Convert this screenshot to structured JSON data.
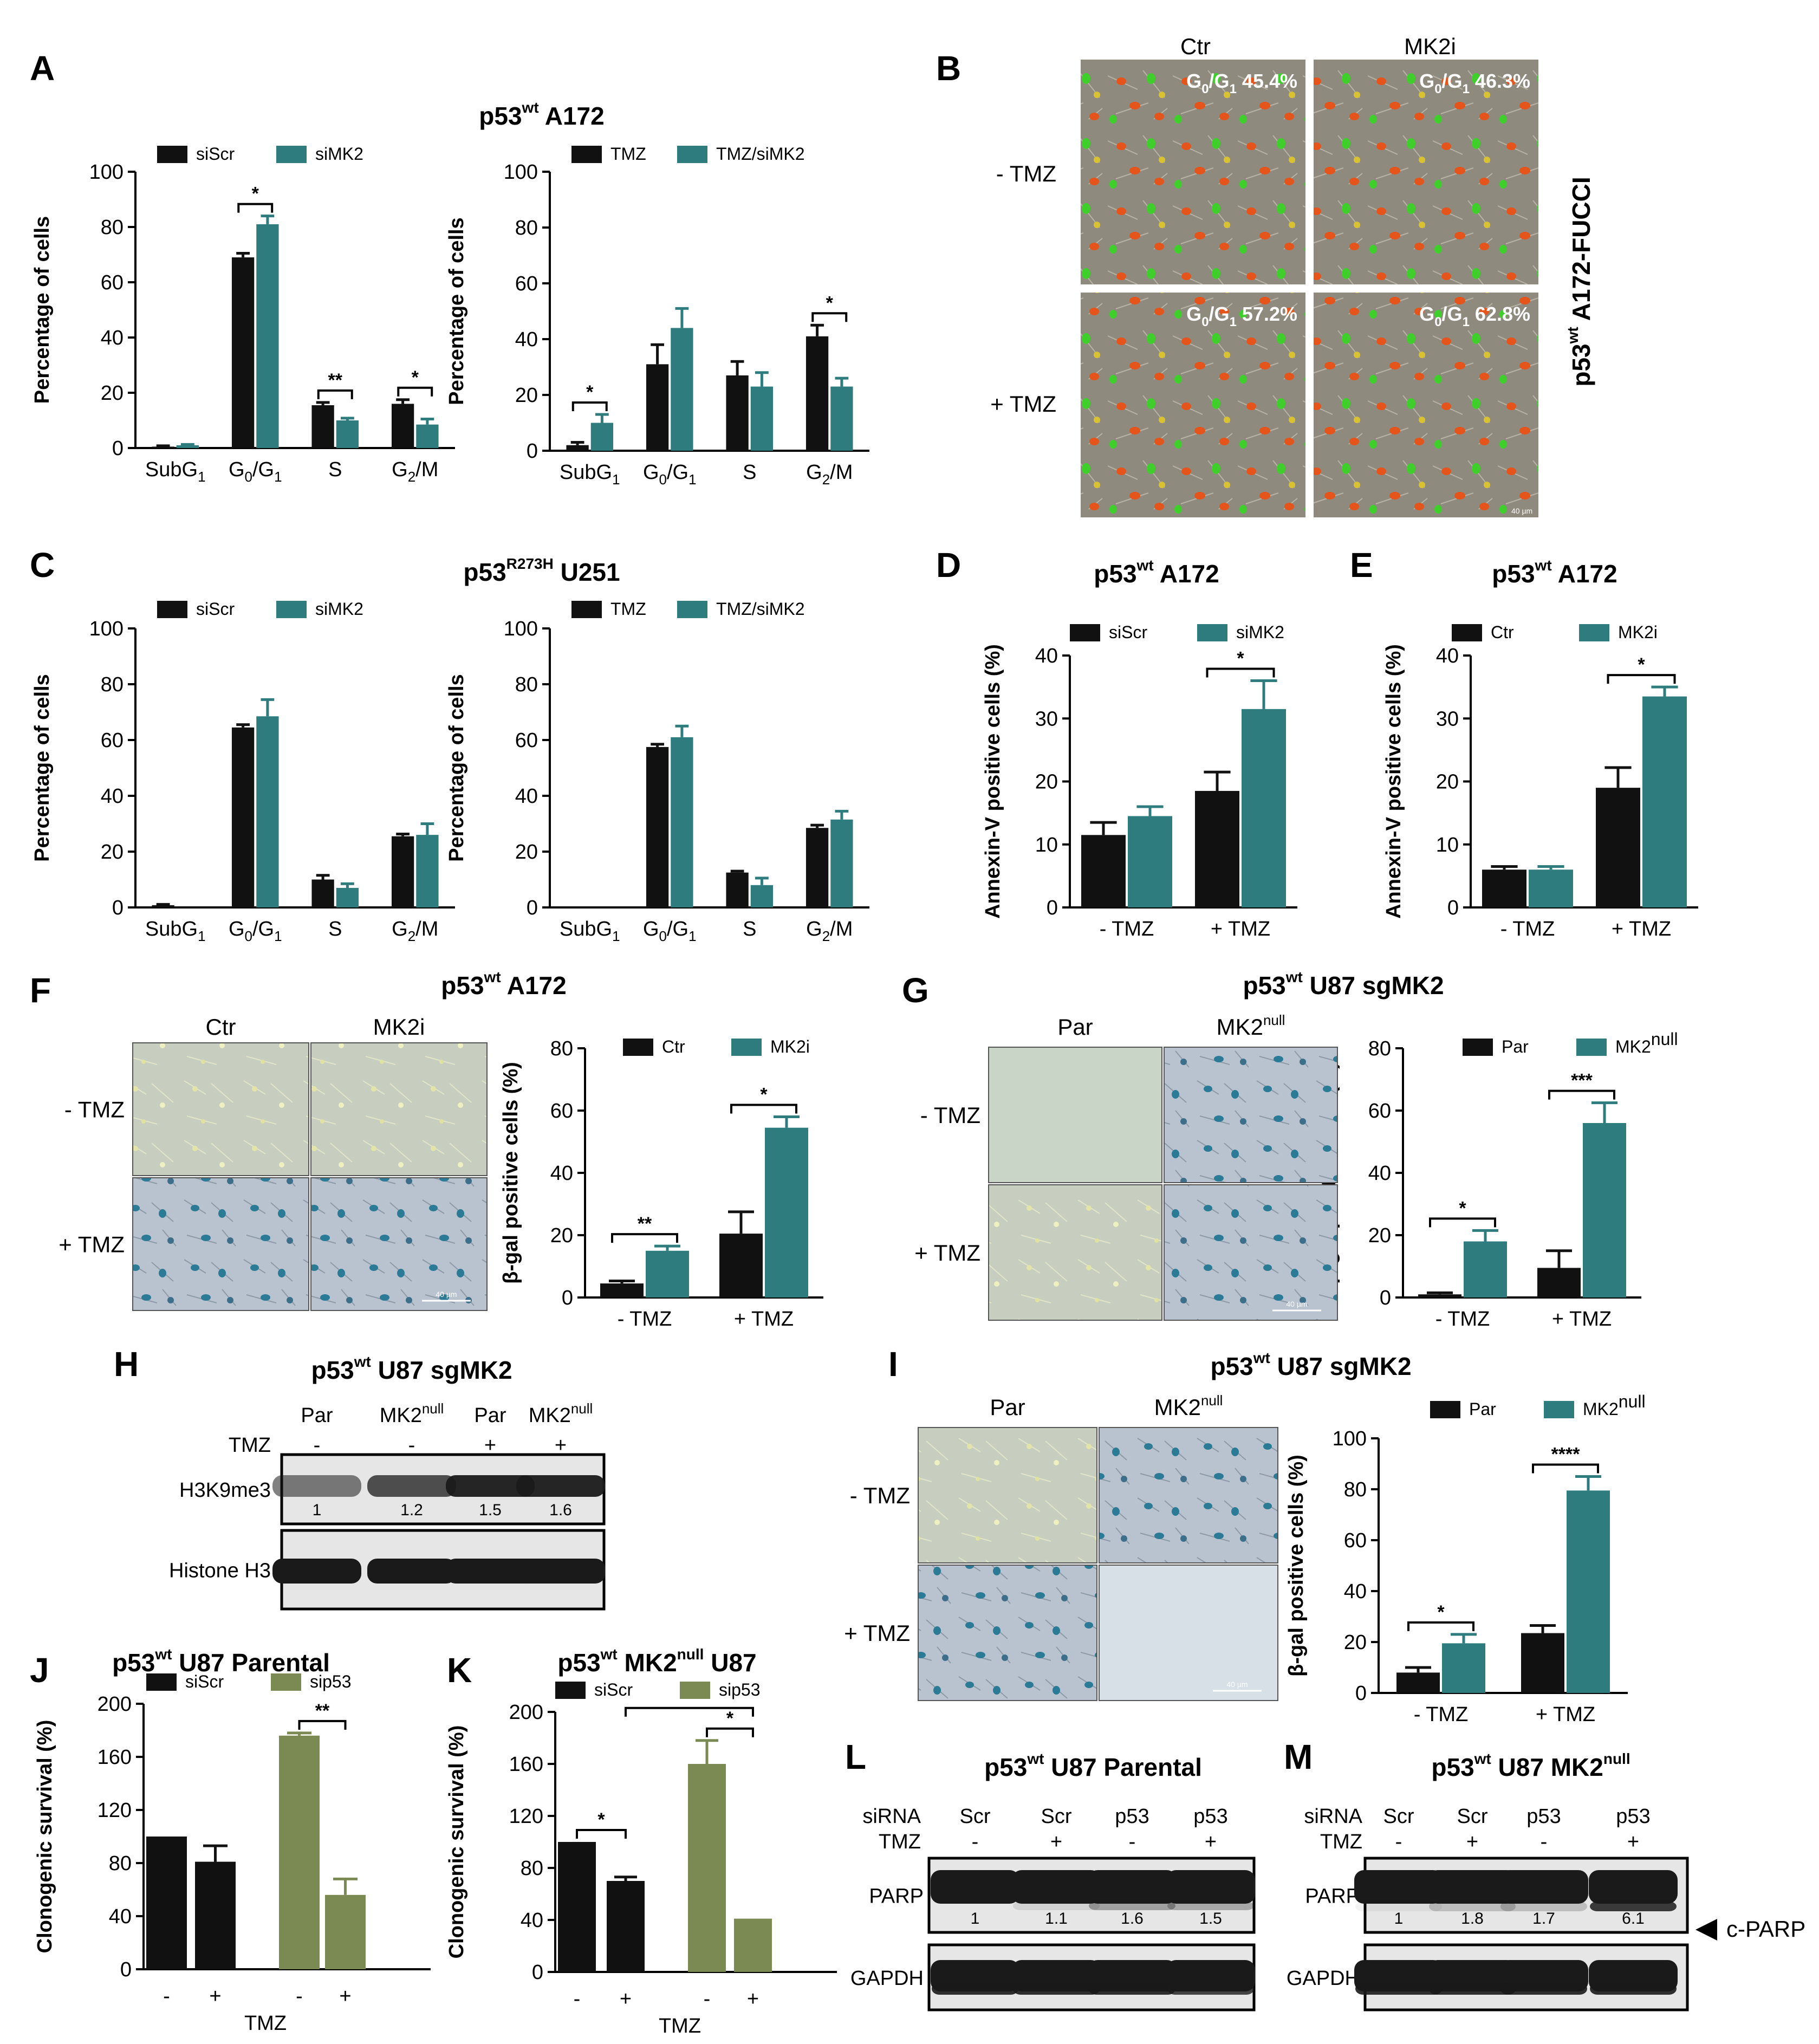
{
  "colors": {
    "black": "#111111",
    "teal": "#2e7c7e",
    "olive": "#7b8a52",
    "fucci_bg": "#8e8a7e",
    "fucci_red": "#e4541b",
    "fucci_green": "#3fcf2b",
    "sa_blue": "#2b7a96",
    "blot_bg": "#e6e6e6",
    "band": "#1a1a1a"
  },
  "chart_data": [
    {
      "id": "A-left",
      "panel": "A",
      "type": "bar",
      "title": "p53wt A172",
      "ylabel": "Percentage of cells",
      "ylim": [
        0,
        100
      ],
      "yticks": [
        0,
        20,
        40,
        60,
        80,
        100
      ],
      "categories": [
        "SubG1",
        "G0/G1",
        "S",
        "G2/M"
      ],
      "series": [
        {
          "name": "siScr",
          "color": "black",
          "values": [
            0.5,
            69,
            15.5,
            16
          ],
          "errors": [
            0.3,
            1.5,
            1,
            1.5
          ]
        },
        {
          "name": "siMK2",
          "color": "teal",
          "values": [
            1,
            81,
            10,
            8.5
          ],
          "errors": [
            0.3,
            3,
            0.8,
            2
          ]
        }
      ],
      "significance": [
        {
          "cat": 1,
          "label": "*"
        },
        {
          "cat": 2,
          "label": "**"
        },
        {
          "cat": 3,
          "label": "*"
        }
      ]
    },
    {
      "id": "A-right",
      "panel": "A",
      "type": "bar",
      "ylabel": "Percentage of cells",
      "ylim": [
        0,
        100
      ],
      "yticks": [
        0,
        20,
        40,
        60,
        80,
        100
      ],
      "categories": [
        "SubG1",
        "G0/G1",
        "S",
        "G2/M"
      ],
      "series": [
        {
          "name": "TMZ",
          "color": "black",
          "values": [
            2,
            31,
            27,
            41
          ],
          "errors": [
            1,
            7,
            5,
            4
          ]
        },
        {
          "name": "TMZ/siMK2",
          "color": "teal",
          "values": [
            10,
            44,
            23,
            23
          ],
          "errors": [
            3,
            7,
            5,
            3
          ]
        }
      ],
      "significance": [
        {
          "cat": 0,
          "label": "*"
        },
        {
          "cat": 3,
          "label": "*"
        }
      ]
    },
    {
      "id": "C-left",
      "panel": "C",
      "type": "bar",
      "title": "p53R273H U251",
      "ylabel": "Percentage of cells",
      "ylim": [
        0,
        100
      ],
      "yticks": [
        0,
        20,
        40,
        60,
        80,
        100
      ],
      "categories": [
        "SubG1",
        "G0/G1",
        "S",
        "G2/M"
      ],
      "series": [
        {
          "name": "siScr",
          "color": "black",
          "values": [
            0.8,
            64.5,
            10,
            25.5
          ],
          "errors": [
            0.3,
            1,
            1.5,
            0.8
          ]
        },
        {
          "name": "siMK2",
          "color": "teal",
          "values": [
            0,
            68.5,
            7,
            26
          ],
          "errors": [
            0,
            6,
            1.5,
            4
          ]
        }
      ],
      "significance": []
    },
    {
      "id": "C-right",
      "panel": "C",
      "type": "bar",
      "ylabel": "Percentage of cells",
      "ylim": [
        0,
        100
      ],
      "yticks": [
        0,
        20,
        40,
        60,
        80,
        100
      ],
      "categories": [
        "SubG1",
        "G0/G1",
        "S",
        "G2/M"
      ],
      "series": [
        {
          "name": "TMZ",
          "color": "black",
          "values": [
            0,
            57.5,
            12.5,
            28.5
          ],
          "errors": [
            0,
            1,
            0.5,
            1
          ]
        },
        {
          "name": "TMZ/siMK2",
          "color": "teal",
          "values": [
            0,
            61,
            8,
            31.5
          ],
          "errors": [
            0,
            4,
            2.5,
            3
          ]
        }
      ],
      "significance": []
    },
    {
      "id": "D",
      "panel": "D",
      "type": "bar",
      "title": "p53wt A172",
      "ylabel": "Annexin-V positive cells (%)",
      "ylim": [
        0,
        40
      ],
      "yticks": [
        0,
        10,
        20,
        30,
        40
      ],
      "categories": [
        "- TMZ",
        "+ TMZ"
      ],
      "series": [
        {
          "name": "siScr",
          "color": "black",
          "values": [
            11.5,
            18.5
          ],
          "errors": [
            2,
            3
          ]
        },
        {
          "name": "siMK2",
          "color": "teal",
          "values": [
            14.5,
            31.5
          ],
          "errors": [
            1.5,
            4.5
          ]
        }
      ],
      "significance": [
        {
          "cat": 1,
          "label": "*"
        }
      ]
    },
    {
      "id": "E",
      "panel": "E",
      "type": "bar",
      "title": "p53wt A172",
      "ylabel": "Annexin-V positive cells (%)",
      "ylim": [
        0,
        40
      ],
      "yticks": [
        0,
        10,
        20,
        30,
        40
      ],
      "categories": [
        "- TMZ",
        "+ TMZ"
      ],
      "series": [
        {
          "name": "Ctr",
          "color": "black",
          "values": [
            6,
            19
          ],
          "errors": [
            0.5,
            3.2
          ]
        },
        {
          "name": "MK2i",
          "color": "teal",
          "values": [
            6,
            33.5
          ],
          "errors": [
            0.5,
            1.5
          ]
        }
      ],
      "significance": [
        {
          "cat": 1,
          "label": "*"
        }
      ]
    },
    {
      "id": "F",
      "panel": "F",
      "type": "bar",
      "ylabel": "β-gal positive cells (%)",
      "ylim": [
        0,
        80
      ],
      "yticks": [
        0,
        20,
        40,
        60,
        80
      ],
      "categories": [
        "- TMZ",
        "+ TMZ"
      ],
      "series": [
        {
          "name": "Ctr",
          "color": "black",
          "values": [
            4.5,
            20.5
          ],
          "errors": [
            0.8,
            7
          ]
        },
        {
          "name": "MK2i",
          "color": "teal",
          "values": [
            15,
            54.5
          ],
          "errors": [
            1.5,
            3.5
          ]
        }
      ],
      "significance": [
        {
          "cat": 0,
          "label": "**"
        },
        {
          "cat": 1,
          "label": "*"
        }
      ]
    },
    {
      "id": "G",
      "panel": "G",
      "type": "bar",
      "ylabel": "β-gal positive cells (%)",
      "ylim": [
        0,
        80
      ],
      "yticks": [
        0,
        20,
        40,
        60,
        80
      ],
      "categories": [
        "- TMZ",
        "+ TMZ"
      ],
      "series": [
        {
          "name": "Par",
          "color": "black",
          "values": [
            1,
            9.5
          ],
          "errors": [
            0.5,
            5.5
          ]
        },
        {
          "name": "MK2null",
          "color": "teal",
          "values": [
            18,
            56
          ],
          "errors": [
            3.5,
            6.5
          ]
        }
      ],
      "significance": [
        {
          "cat": 0,
          "label": "*"
        },
        {
          "cat": 1,
          "label": "***"
        }
      ]
    },
    {
      "id": "I",
      "panel": "I",
      "type": "bar",
      "ylabel": "β-gal positive cells (%)",
      "ylim": [
        0,
        100
      ],
      "yticks": [
        0,
        20,
        40,
        60,
        80,
        100
      ],
      "categories": [
        "- TMZ",
        "+ TMZ"
      ],
      "series": [
        {
          "name": "Par",
          "color": "black",
          "values": [
            8,
            23.5
          ],
          "errors": [
            2,
            3
          ]
        },
        {
          "name": "MK2null",
          "color": "teal",
          "values": [
            19.5,
            79.5
          ],
          "errors": [
            3.5,
            5.5
          ]
        }
      ],
      "significance": [
        {
          "cat": 0,
          "label": "*"
        },
        {
          "cat": 1,
          "label": "****"
        }
      ]
    },
    {
      "id": "J",
      "panel": "J",
      "type": "bar",
      "title": "p53wt U87 Parental",
      "ylabel": "Clonogenic survival (%)",
      "xlabel": "TMZ",
      "ylim": [
        0,
        200
      ],
      "yticks": [
        0,
        40,
        80,
        120,
        160,
        200
      ],
      "categories": [
        "-",
        "+",
        "-",
        "+"
      ],
      "values": [
        100,
        81,
        176,
        56
      ],
      "errors": [
        0,
        12,
        2,
        12
      ],
      "bar_series": [
        "siScr",
        "siScr",
        "sip53",
        "sip53"
      ],
      "legend": [
        {
          "name": "siScr",
          "color": "black"
        },
        {
          "name": "sip53",
          "color": "olive"
        }
      ],
      "significance": [
        {
          "from": 2,
          "to": 3,
          "label": "**"
        }
      ]
    },
    {
      "id": "K",
      "panel": "K",
      "type": "bar",
      "title": "p53wt MK2null U87",
      "ylabel": "Clonogenic survival (%)",
      "xlabel": "TMZ",
      "ylim": [
        0,
        200
      ],
      "yticks": [
        0,
        40,
        80,
        120,
        160,
        200
      ],
      "categories": [
        "-",
        "+",
        "-",
        "+"
      ],
      "values": [
        100,
        70,
        160,
        41
      ],
      "errors": [
        0,
        3,
        18,
        0
      ],
      "bar_series": [
        "siScr",
        "siScr",
        "sip53",
        "sip53"
      ],
      "legend": [
        {
          "name": "siScr",
          "color": "black"
        },
        {
          "name": "sip53",
          "color": "olive"
        }
      ],
      "significance": [
        {
          "from": 0,
          "to": 1,
          "label": "*"
        },
        {
          "from": 2,
          "to": 3,
          "label": "*"
        },
        {
          "from": 1,
          "to": 3,
          "label": "*"
        }
      ]
    }
  ],
  "panels": {
    "A": "A",
    "B": "B",
    "C": "C",
    "D": "D",
    "E": "E",
    "F": "F",
    "G": "G",
    "H": "H",
    "I": "I",
    "J": "J",
    "K": "K",
    "L": "L",
    "M": "M"
  },
  "titles": {
    "A": {
      "pre": "p53",
      "sup": "wt",
      "post": " A172"
    },
    "C": {
      "pre": "p53",
      "sup": "R273H",
      "post": " U251"
    },
    "D": {
      "pre": "p53",
      "sup": "wt",
      "post": " A172"
    },
    "E": {
      "pre": "p53",
      "sup": "wt",
      "post": " A172"
    },
    "F": {
      "pre": "p53",
      "sup": "wt",
      "post": " A172"
    },
    "G": {
      "pre": "p53",
      "sup": "wt",
      "post": " U87 sgMK2"
    },
    "H": {
      "pre": "p53",
      "sup": "wt",
      "post": " U87 sgMK2"
    },
    "I": {
      "pre": "p53",
      "sup": "wt",
      "post": " U87 sgMK2"
    },
    "J": {
      "pre": "p53",
      "sup": "wt",
      "post": " U87 Parental"
    },
    "K": {
      "pre": "p53",
      "sup": "wt",
      "post": " MK2",
      "sup2": "null",
      "post2": " U87"
    },
    "L": {
      "pre": "p53",
      "sup": "wt",
      "post": " U87 Parental"
    },
    "M": {
      "pre": "p53",
      "sup": "wt",
      "post": " U87 MK2",
      "sup2": "null"
    }
  },
  "panelB": {
    "col1": "Ctr",
    "col2": "MK2i",
    "row1": "- TMZ",
    "row2": "+ TMZ",
    "side_pre": "p53",
    "side_sup": "wt",
    "side_post": " A172-FUCCI",
    "overlays": [
      "G0/G1 45.4%",
      "G0/G1 46.3%",
      "G0/G1 57.2%",
      "G0/G1 62.8%"
    ],
    "overlay_parts": [
      {
        "g": "G",
        "s0": "0",
        "mid": "/G",
        "s1": "1",
        "val": " 45.4%"
      },
      {
        "g": "G",
        "s0": "0",
        "mid": "/G",
        "s1": "1",
        "val": " 46.3%"
      },
      {
        "g": "G",
        "s0": "0",
        "mid": "/G",
        "s1": "1",
        "val": " 57.2%"
      },
      {
        "g": "G",
        "s0": "0",
        "mid": "/G",
        "s1": "1",
        "val": " 62.8%"
      }
    ],
    "scale": "40 µm"
  },
  "panelF_images": {
    "col1": "Ctr",
    "col2": "MK2i",
    "row1": "- TMZ",
    "row2": "+ TMZ",
    "scale": "40 µm"
  },
  "panelG_images": {
    "col1": "Par",
    "col2_pre": "MK2",
    "col2_sup": "null",
    "row1": "- TMZ",
    "row2": "+ TMZ",
    "scale": "40 µm"
  },
  "panelI_images": {
    "col1": "Par",
    "col2_pre": "MK2",
    "col2_sup": "null",
    "row1": "- TMZ",
    "row2": "+ TMZ",
    "scale": "40 µm"
  },
  "panelH": {
    "lanes": [
      "Par",
      "MK2null",
      "Par",
      "MK2null"
    ],
    "lane_parts": [
      {
        "t": "Par",
        "s": ""
      },
      {
        "t": "MK2",
        "s": "null"
      },
      {
        "t": "Par",
        "s": ""
      },
      {
        "t": "MK2",
        "s": "null"
      }
    ],
    "tmz_label": "TMZ",
    "tmz": [
      "-",
      "-",
      "+",
      "+"
    ],
    "rows": [
      {
        "name": "H3K9me3",
        "quant": [
          "1",
          "1.2",
          "1.5",
          "1.6"
        ]
      },
      {
        "name": "Histone H3",
        "quant": []
      }
    ]
  },
  "panelL": {
    "sirna_label": "siRNA",
    "tmz_label": "TMZ",
    "sirna": [
      "Scr",
      "Scr",
      "p53",
      "p53"
    ],
    "tmz": [
      "-",
      "+",
      "-",
      "+"
    ],
    "rows": [
      {
        "name": "PARP",
        "quant": [
          "1",
          "1.1",
          "1.6",
          "1.5"
        ]
      },
      {
        "name": "GAPDH",
        "quant": []
      }
    ]
  },
  "panelM": {
    "sirna_label": "siRNA",
    "tmz_label": "TMZ",
    "sirna": [
      "Scr",
      "Scr",
      "p53",
      "p53"
    ],
    "tmz": [
      "-",
      "+",
      "-",
      "+"
    ],
    "rows": [
      {
        "name": "PARP",
        "quant": [
          "1",
          "1.8",
          "1.7",
          "6.1"
        ]
      },
      {
        "name": "GAPDH",
        "quant": []
      }
    ],
    "cparp": "c-PARP"
  }
}
